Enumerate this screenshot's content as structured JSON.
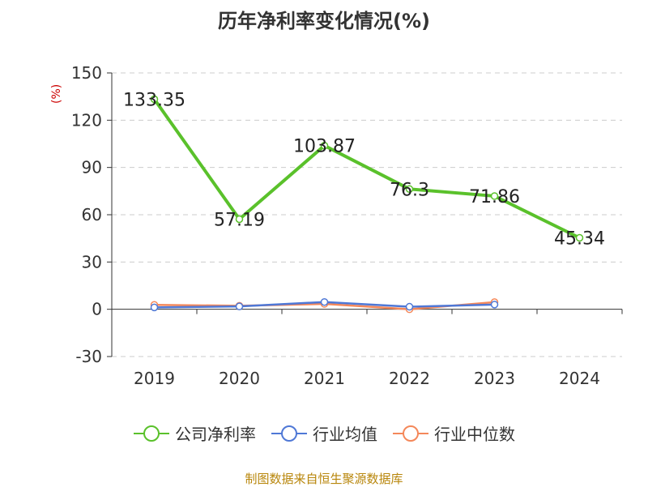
{
  "chart_data": {
    "type": "line",
    "title": "历年净利率变化情况(%)",
    "unit_label": "(%)",
    "categories": [
      "2019",
      "2020",
      "2021",
      "2022",
      "2023",
      "2024"
    ],
    "ylim": [
      -30,
      150
    ],
    "yticks": [
      -30,
      0,
      30,
      60,
      90,
      120,
      150
    ],
    "grid": true,
    "legend_position": "bottom",
    "series": [
      {
        "name": "公司净利率",
        "color": "#5ac12b",
        "values": [
          133.35,
          57.19,
          103.87,
          76.3,
          71.86,
          45.34
        ],
        "labels": [
          "133.35",
          "57.19",
          "103.87",
          "76.3",
          "71.86",
          "45.34"
        ],
        "show_labels": true
      },
      {
        "name": "行业均值",
        "color": "#4f78d6",
        "values": [
          1.2,
          1.8,
          4.6,
          1.6,
          3.0,
          null
        ],
        "show_labels": false
      },
      {
        "name": "行业中位数",
        "color": "#f4885a",
        "values": [
          2.8,
          2.2,
          3.4,
          0.0,
          4.5,
          null
        ],
        "show_labels": false
      }
    ]
  },
  "source_text": "制图数据来自恒生聚源数据库"
}
